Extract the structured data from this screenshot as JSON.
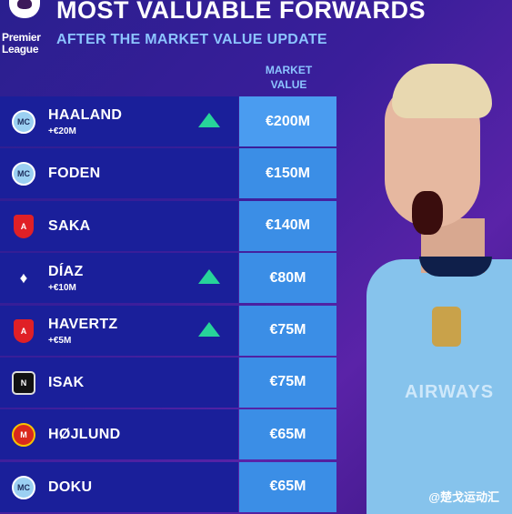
{
  "brand": {
    "line1": "Premier",
    "line2": "League"
  },
  "title": "MOST VALUABLE FORWARDS",
  "subtitle": "AFTER THE MARKET VALUE UPDATE",
  "column_header": {
    "line1": "MARKET",
    "line2": "VALUE"
  },
  "rows": [
    {
      "club": "mci",
      "club_icon": "manchester-city-crest",
      "name": "HAALAND",
      "change": "+€20M",
      "trend": "up",
      "value": "€200M"
    },
    {
      "club": "mci",
      "club_icon": "manchester-city-crest",
      "name": "FODEN",
      "change": "",
      "trend": "",
      "value": "€150M"
    },
    {
      "club": "ars",
      "club_icon": "arsenal-crest",
      "name": "SAKA",
      "change": "",
      "trend": "",
      "value": "€140M"
    },
    {
      "club": "liv",
      "club_icon": "liverpool-crest",
      "name": "DÍAZ",
      "change": "+€10M",
      "trend": "up",
      "value": "€80M"
    },
    {
      "club": "ars",
      "club_icon": "arsenal-crest",
      "name": "HAVERTZ",
      "change": "+€5M",
      "trend": "up",
      "value": "€75M"
    },
    {
      "club": "new",
      "club_icon": "newcastle-crest",
      "name": "ISAK",
      "change": "",
      "trend": "",
      "value": "€75M"
    },
    {
      "club": "mun",
      "club_icon": "manchester-united-crest",
      "name": "HØJLUND",
      "change": "",
      "trend": "",
      "value": "€65M"
    },
    {
      "club": "mci",
      "club_icon": "manchester-city-crest",
      "name": "DOKU",
      "change": "",
      "trend": "",
      "value": "€65M"
    }
  ],
  "player_shirt_text": "AIRWAYS",
  "watermark": "@楚戈运动汇",
  "colors": {
    "background": "#3a1e9a",
    "row_left": "#1a1f9a",
    "row_right": "#3b8ee6",
    "up_arrow": "#27d39a",
    "accent_text": "#8cc4ff"
  }
}
